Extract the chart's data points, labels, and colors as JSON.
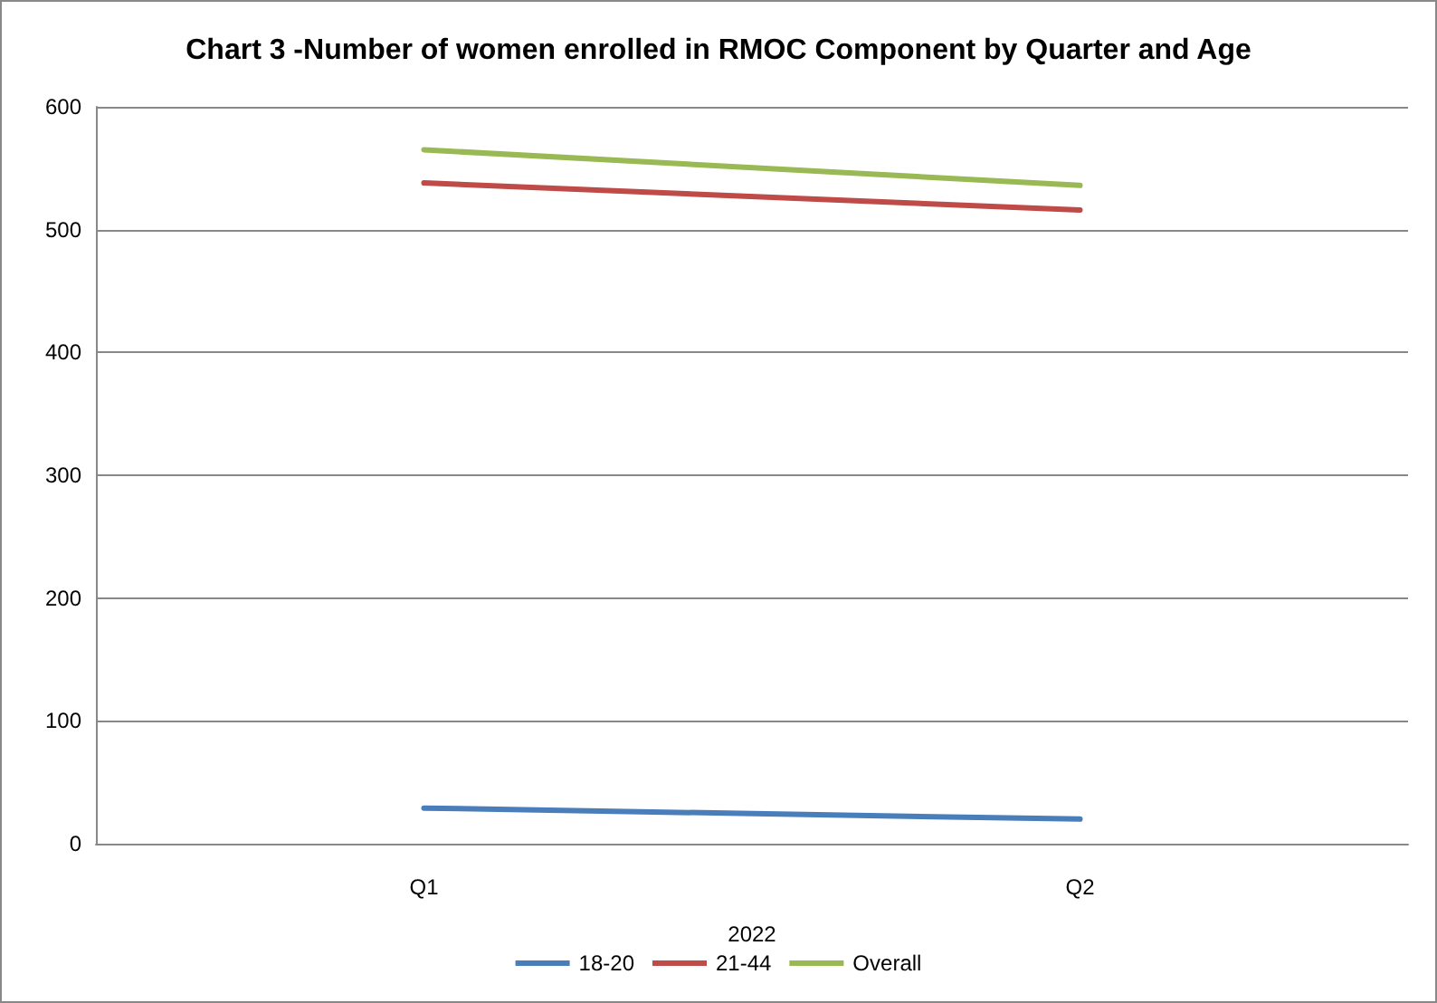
{
  "chart_data": {
    "type": "line",
    "title": "Chart 3 -Number of women enrolled in RMOC Component by Quarter and Age",
    "xlabel": "2022",
    "categories": [
      "Q1",
      "Q2"
    ],
    "series": [
      {
        "name": "18-20",
        "color": "#4a7ebb",
        "values": [
          29,
          20
        ]
      },
      {
        "name": "21-44",
        "color": "#be4b48",
        "values": [
          538,
          516
        ]
      },
      {
        "name": "Overall",
        "color": "#98b954",
        "values": [
          565,
          536
        ]
      }
    ],
    "ylim": [
      0,
      600
    ],
    "yticks": [
      0,
      100,
      200,
      300,
      400,
      500,
      600
    ],
    "grid": "y",
    "legend": "bottom",
    "marker": "none",
    "line_style": "solid"
  }
}
